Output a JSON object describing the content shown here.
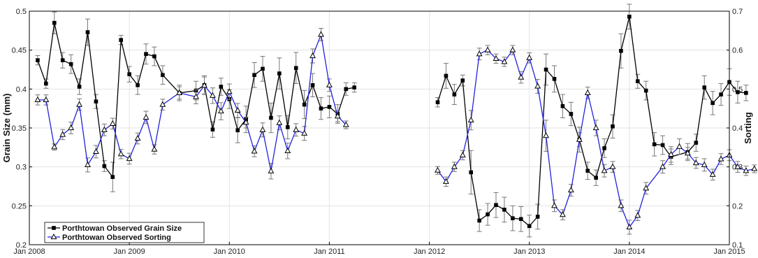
{
  "chart_data": {
    "type": "line",
    "title": "",
    "xlabel": "",
    "ylabel_left": "Grain Size (mm)",
    "ylabel_right": "Sorting",
    "x_ticks": [
      "Jan 2008",
      "Jan 2009",
      "Jan 2010",
      "Jan 2011",
      "Jan 2012",
      "Jan 2013",
      "Jan 2014",
      "Jan 2015"
    ],
    "xlim": [
      "2008-01",
      "2015-01"
    ],
    "ylim_left": [
      0.2,
      0.5
    ],
    "ylim_right": [
      0.1,
      0.7
    ],
    "yticks_left": [
      "0.2",
      "0.25",
      "0.3",
      "0.35",
      "0.4",
      "0.45",
      "0.5"
    ],
    "yticks_right": [
      "0.1",
      "0.2",
      "0.3",
      "0.4",
      "0.5",
      "0.6",
      "0.7"
    ],
    "grid": true,
    "legend_position": "bottom-left",
    "series": [
      {
        "name": "Porthtowan Observed Grain Size",
        "axis": "left",
        "color": "#000000",
        "marker": "square",
        "segments": [
          [
            [
              "2008-02",
              0.437,
              0.006
            ],
            [
              "2008-03",
              0.407,
              0.006
            ],
            [
              "2008-04",
              0.485,
              0.014
            ],
            [
              "2008-05",
              0.437,
              0.01
            ],
            [
              "2008-06",
              0.432,
              0.012
            ],
            [
              "2008-07",
              0.403,
              0.01
            ],
            [
              "2008-08",
              0.473,
              0.017
            ],
            [
              "2008-09",
              0.384,
              0.009
            ],
            [
              "2008-10",
              0.301,
              0.007
            ],
            [
              "2008-11",
              0.287,
              0.019
            ],
            [
              "2008-12",
              0.463,
              0.006
            ],
            [
              "2009-01",
              0.419,
              0.01
            ],
            [
              "2009-02",
              0.405,
              0.012
            ],
            [
              "2009-03",
              0.445,
              0.013
            ],
            [
              "2009-04",
              0.442,
              0.012
            ],
            [
              "2009-05",
              0.418,
              0.012
            ],
            [
              "2009-07",
              0.395,
              0.01
            ],
            [
              "2009-09",
              0.398,
              0.012
            ],
            [
              "2009-10",
              0.405,
              0.012
            ],
            [
              "2009-11",
              0.348,
              0.01
            ],
            [
              "2009-12",
              0.403,
              0.011
            ],
            [
              "2010-01",
              0.387,
              0.012
            ],
            [
              "2010-02",
              0.347,
              0.016
            ],
            [
              "2010-03",
              0.361,
              0.017
            ],
            [
              "2010-04",
              0.418,
              0.016
            ],
            [
              "2010-05",
              0.426,
              0.016
            ],
            [
              "2010-06",
              0.363,
              0.019
            ],
            [
              "2010-07",
              0.42,
              0.02
            ],
            [
              "2010-08",
              0.351,
              0.015
            ],
            [
              "2010-09",
              0.427,
              0.02
            ],
            [
              "2010-10",
              0.38,
              0.018
            ],
            [
              "2010-11",
              0.405,
              0.015
            ],
            [
              "2010-12",
              0.375,
              0.014
            ],
            [
              "2011-01",
              0.377,
              0.014
            ],
            [
              "2011-02",
              0.368,
              0.012
            ],
            [
              "2011-03",
              0.4,
              0.008
            ],
            [
              "2011-04",
              0.402,
              0.006
            ]
          ],
          [
            [
              "2012-02",
              0.383,
              0.006
            ],
            [
              "2012-03",
              0.417,
              0.016
            ],
            [
              "2012-04",
              0.393,
              0.013
            ],
            [
              "2012-05",
              0.411,
              0.007
            ],
            [
              "2012-06",
              0.293,
              0.028
            ],
            [
              "2012-07",
              0.231,
              0.014
            ],
            [
              "2012-08",
              0.239,
              0.014
            ],
            [
              "2012-09",
              0.251,
              0.016
            ],
            [
              "2012-10",
              0.245,
              0.016
            ],
            [
              "2012-11",
              0.234,
              0.016
            ],
            [
              "2012-12",
              0.233,
              0.016
            ],
            [
              "2013-01",
              0.224,
              0.014
            ],
            [
              "2013-02",
              0.236,
              0.016
            ],
            [
              "2013-03",
              0.425,
              0.02
            ],
            [
              "2013-04",
              0.413,
              0.017
            ],
            [
              "2013-05",
              0.378,
              0.015
            ],
            [
              "2013-06",
              0.368,
              0.015
            ],
            [
              "2013-07",
              0.335,
              0.016
            ],
            [
              "2013-08",
              0.295,
              0.011
            ],
            [
              "2013-09",
              0.286,
              0.01
            ],
            [
              "2013-10",
              0.324,
              0.012
            ],
            [
              "2013-11",
              0.352,
              0.015
            ],
            [
              "2013-12",
              0.449,
              0.022
            ],
            [
              "2014-01",
              0.493,
              0.016
            ],
            [
              "2014-02",
              0.41,
              0.009
            ],
            [
              "2014-03",
              0.398,
              0.012
            ],
            [
              "2014-04",
              0.329,
              0.015
            ],
            [
              "2014-05",
              0.328,
              0.012
            ],
            [
              "2014-06",
              0.313,
              0.01
            ],
            [
              "2014-08",
              0.319,
              0.011
            ],
            [
              "2014-09",
              0.331,
              0.011
            ],
            [
              "2014-10",
              0.402,
              0.015
            ],
            [
              "2014-11",
              0.382,
              0.015
            ],
            [
              "2014-12",
              0.393,
              0.014
            ],
            [
              "2015-01",
              0.409,
              0.017
            ],
            [
              "2015-02",
              0.396,
              0.014
            ],
            [
              "2015-03",
              0.395,
              0.01
            ]
          ]
        ]
      },
      {
        "name": "Porthtowan Observed Sorting",
        "axis": "right",
        "color": "#2222dd",
        "marker": "triangle",
        "segments": [
          [
            [
              "2008-02",
              0.472,
              0.013
            ],
            [
              "2008-03",
              0.472,
              0.013
            ],
            [
              "2008-04",
              0.351,
              0.008
            ],
            [
              "2008-05",
              0.383,
              0.013
            ],
            [
              "2008-06",
              0.4,
              0.015
            ],
            [
              "2008-07",
              0.46,
              0.015
            ],
            [
              "2008-08",
              0.305,
              0.018
            ],
            [
              "2008-09",
              0.339,
              0.016
            ],
            [
              "2008-10",
              0.395,
              0.015
            ],
            [
              "2008-11",
              0.411,
              0.014
            ],
            [
              "2008-12",
              0.333,
              0.012
            ],
            [
              "2009-01",
              0.321,
              0.014
            ],
            [
              "2009-02",
              0.373,
              0.014
            ],
            [
              "2009-03",
              0.427,
              0.016
            ],
            [
              "2009-04",
              0.345,
              0.012
            ],
            [
              "2009-05",
              0.46,
              0.014
            ],
            [
              "2009-07",
              0.49,
              0.016
            ],
            [
              "2009-09",
              0.48,
              0.018
            ],
            [
              "2009-10",
              0.509,
              0.022
            ],
            [
              "2009-11",
              0.483,
              0.02
            ],
            [
              "2009-12",
              0.443,
              0.022
            ],
            [
              "2010-01",
              0.493,
              0.02
            ],
            [
              "2010-02",
              0.445,
              0.018
            ],
            [
              "2010-03",
              0.414,
              0.014
            ],
            [
              "2010-04",
              0.34,
              0.014
            ],
            [
              "2010-05",
              0.395,
              0.018
            ],
            [
              "2010-06",
              0.289,
              0.02
            ],
            [
              "2010-07",
              0.413,
              0.018
            ],
            [
              "2010-08",
              0.341,
              0.02
            ],
            [
              "2010-09",
              0.395,
              0.016
            ],
            [
              "2010-10",
              0.386,
              0.018
            ],
            [
              "2010-11",
              0.585,
              0.018
            ],
            [
              "2010-12",
              0.64,
              0.016
            ],
            [
              "2011-01",
              0.51,
              0.016
            ],
            [
              "2011-02",
              0.43,
              0.014
            ],
            [
              "2011-03",
              0.408,
              0.01
            ]
          ],
          [
            [
              "2012-02",
              0.291,
              0.01
            ],
            [
              "2012-03",
              0.262,
              0.012
            ],
            [
              "2012-04",
              0.3,
              0.012
            ],
            [
              "2012-05",
              0.33,
              0.012
            ],
            [
              "2012-06",
              0.42,
              0.025
            ],
            [
              "2012-07",
              0.59,
              0.015
            ],
            [
              "2012-08",
              0.6,
              0.012
            ],
            [
              "2012-09",
              0.578,
              0.012
            ],
            [
              "2012-10",
              0.57,
              0.012
            ],
            [
              "2012-11",
              0.6,
              0.012
            ],
            [
              "2012-12",
              0.53,
              0.015
            ],
            [
              "2013-01",
              0.58,
              0.013
            ],
            [
              "2013-02",
              0.507,
              0.018
            ],
            [
              "2013-03",
              0.38,
              0.04
            ],
            [
              "2013-04",
              0.2,
              0.015
            ],
            [
              "2013-05",
              0.177,
              0.013
            ],
            [
              "2013-06",
              0.24,
              0.015
            ],
            [
              "2013-07",
              0.37,
              0.018
            ],
            [
              "2013-08",
              0.49,
              0.015
            ],
            [
              "2013-09",
              0.4,
              0.02
            ],
            [
              "2013-10",
              0.29,
              0.016
            ],
            [
              "2013-11",
              0.3,
              0.014
            ],
            [
              "2013-12",
              0.2,
              0.015
            ],
            [
              "2014-01",
              0.145,
              0.018
            ],
            [
              "2014-02",
              0.175,
              0.013
            ],
            [
              "2014-03",
              0.245,
              0.015
            ],
            [
              "2014-05",
              0.3,
              0.016
            ],
            [
              "2014-06",
              0.332,
              0.02
            ],
            [
              "2014-07",
              0.352,
              0.02
            ],
            [
              "2014-08",
              0.335,
              0.015
            ],
            [
              "2014-09",
              0.31,
              0.014
            ],
            [
              "2014-10",
              0.305,
              0.016
            ],
            [
              "2014-11",
              0.28,
              0.014
            ],
            [
              "2014-12",
              0.32,
              0.014
            ],
            [
              "2015-01",
              0.33,
              0.014
            ],
            [
              "2015-02",
              0.3,
              0.014
            ],
            [
              "2015-03",
              0.29,
              0.012
            ],
            [
              "2015-04",
              0.295,
              0.01
            ]
          ]
        ]
      }
    ]
  }
}
